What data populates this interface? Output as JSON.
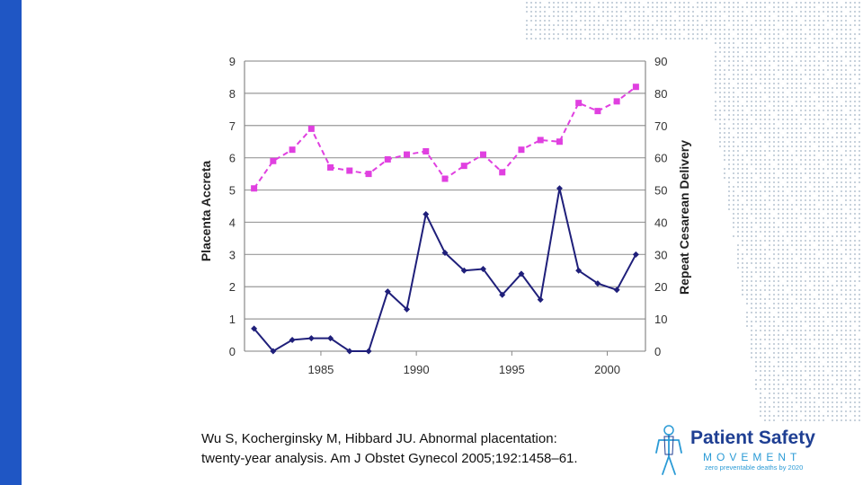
{
  "chart_data": {
    "type": "line",
    "title": "",
    "x": [
      1981.5,
      1982.5,
      1983.5,
      1984.5,
      1985.5,
      1986.5,
      1987.5,
      1988.5,
      1989.5,
      1990.5,
      1991.5,
      1992.5,
      1993.5,
      1994.5,
      1995.5,
      1996.5,
      1997.5,
      1998.5,
      1999.5,
      2000.5,
      2001.5
    ],
    "xlim": [
      1981,
      2002
    ],
    "xticks": [
      "1985",
      "1990",
      "1995",
      "2000"
    ],
    "xtick_values": [
      1985,
      1990,
      1995,
      2000
    ],
    "ylabel": "Placenta Accreta",
    "ylim": [
      0,
      9
    ],
    "yticks": [
      "0",
      "1",
      "2",
      "3",
      "4",
      "5",
      "6",
      "7",
      "8",
      "9"
    ],
    "y2label": "Repeat Cesarean Delivery",
    "y2lim": [
      0,
      90
    ],
    "y2ticks": [
      "0",
      "10",
      "20",
      "30",
      "40",
      "50",
      "60",
      "70",
      "80",
      "90"
    ],
    "grid": "horizontal",
    "series": [
      {
        "axis": "left",
        "color": "#1f1f7a",
        "values": [
          0.7,
          0.0,
          0.35,
          0.4,
          0.4,
          0.0,
          0.0,
          1.85,
          1.3,
          4.25,
          3.05,
          2.5,
          2.55,
          1.75,
          2.4,
          1.6,
          5.05,
          2.5,
          2.1,
          1.9,
          3.0
        ]
      },
      {
        "axis": "right",
        "color": "#e040e0",
        "style": "dashed",
        "values": [
          50.5,
          59,
          62.5,
          69,
          57,
          56,
          55,
          59.5,
          61,
          62,
          53.5,
          57.5,
          61,
          55.5,
          62.5,
          65.5,
          65,
          77,
          74.5,
          77.5,
          82
        ]
      }
    ]
  },
  "citation": {
    "line1": "Wu S, Kocherginsky M, Hibbard JU. Abnormal placentation:",
    "line2": "twenty-year analysis. Am J Obstet Gynecol 2005;192:1458–61."
  },
  "logo": {
    "title": "Patient Safety",
    "subtitle": "MOVEMENT",
    "tagline": "zero preventable deaths by 2020"
  },
  "colors": {
    "left_bar": "#1f56c4",
    "map_dots": "#c8d2dc",
    "logo_blue": "#1f3f93",
    "logo_light": "#2b9bd6"
  }
}
